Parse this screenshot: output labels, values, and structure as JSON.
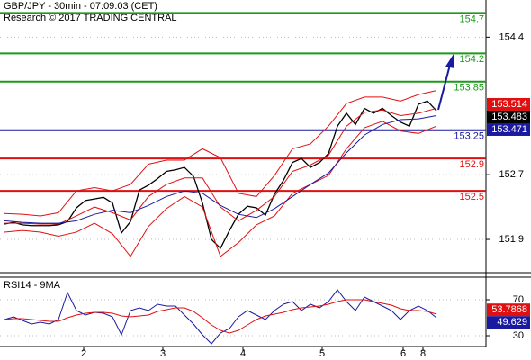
{
  "chart_data": [
    {
      "type": "line",
      "title": "GBP/JPY - 30min - 07:09:03 (CET)",
      "subtitle": "Research © 2017 TRADING CENTRAL",
      "xlim": [
        0,
        540
      ],
      "ylim": [
        151.5,
        154.86
      ],
      "yticks": [
        154.4,
        152.7,
        151.9
      ],
      "grid": true,
      "levels": [
        {
          "value": 154.7,
          "color": "#1a9a1a"
        },
        {
          "value": 154.2,
          "color": "#1a9a1a"
        },
        {
          "value": 153.85,
          "color": "#1a9a1a"
        },
        {
          "value": 153.25,
          "color": "#1a1aa0"
        },
        {
          "value": 152.9,
          "color": "#e01010"
        },
        {
          "value": 152.5,
          "color": "#e01010"
        }
      ],
      "series": [
        {
          "color": "#000000",
          "x": [
            5,
            15,
            25,
            35,
            45,
            55,
            65,
            75,
            85,
            95,
            105,
            115,
            125,
            135,
            145,
            155,
            165,
            175,
            185,
            195,
            205,
            215,
            225,
            235,
            245,
            255,
            265,
            275,
            285,
            295,
            305,
            315,
            325,
            335,
            345,
            355,
            365,
            375,
            385,
            395,
            405,
            415,
            425,
            435,
            445,
            455,
            465,
            475,
            485
          ],
          "values": [
            152.09,
            152.11,
            152.08,
            152.07,
            152.07,
            152.07,
            152.08,
            152.12,
            152.29,
            152.38,
            152.4,
            152.42,
            152.35,
            151.98,
            152.12,
            152.51,
            152.57,
            152.65,
            152.74,
            152.76,
            152.79,
            152.68,
            152.35,
            151.9,
            151.79,
            152.01,
            152.21,
            152.31,
            152.29,
            152.2,
            152.46,
            152.63,
            152.85,
            152.9,
            152.79,
            152.85,
            152.96,
            153.3,
            153.46,
            153.32,
            153.52,
            153.46,
            153.52,
            153.43,
            153.35,
            153.3,
            153.57,
            153.61,
            153.49
          ]
        },
        {
          "color": "#e01010",
          "x": [
            5,
            25,
            45,
            65,
            85,
            105,
            125,
            145,
            165,
            185,
            205,
            225,
            245,
            265,
            285,
            305,
            325,
            345,
            365,
            385,
            405,
            425,
            445,
            465,
            485
          ],
          "values": [
            152.22,
            152.21,
            152.19,
            152.23,
            152.5,
            152.54,
            152.5,
            152.58,
            152.83,
            152.88,
            152.88,
            153.02,
            152.91,
            152.47,
            152.43,
            152.69,
            153.02,
            153.08,
            153.3,
            153.58,
            153.66,
            153.66,
            153.61,
            153.69,
            153.74
          ]
        },
        {
          "color": "#e01010",
          "x": [
            5,
            25,
            45,
            65,
            85,
            105,
            125,
            145,
            165,
            185,
            205,
            225,
            245,
            265,
            285,
            305,
            325,
            345,
            365,
            385,
            405,
            425,
            445,
            465,
            485
          ],
          "values": [
            151.99,
            152.01,
            151.99,
            151.94,
            151.99,
            152.1,
            151.97,
            151.69,
            152.06,
            152.28,
            152.43,
            152.3,
            151.69,
            151.86,
            152.08,
            152.19,
            152.47,
            152.58,
            152.69,
            153.02,
            153.28,
            153.36,
            153.24,
            153.21,
            153.3
          ]
        },
        {
          "color": "#e01010",
          "x": [
            5,
            25,
            45,
            65,
            85,
            105,
            125,
            145,
            165,
            185,
            205,
            225,
            245,
            265,
            285,
            305,
            325,
            345,
            365,
            385,
            405,
            425,
            445,
            465,
            485
          ],
          "values": [
            152.1,
            152.1,
            152.09,
            152.09,
            152.19,
            152.3,
            152.23,
            152.14,
            152.43,
            152.58,
            152.66,
            152.66,
            152.3,
            152.13,
            152.26,
            152.43,
            152.74,
            152.82,
            152.94,
            153.3,
            153.47,
            153.5,
            153.43,
            153.46,
            153.52
          ]
        },
        {
          "color": "#1a1aa0",
          "x": [
            5,
            25,
            45,
            65,
            85,
            105,
            125,
            145,
            165,
            185,
            205,
            225,
            245,
            265,
            285,
            305,
            325,
            345,
            365,
            385,
            405,
            425,
            445,
            465,
            485
          ],
          "values": [
            152.13,
            152.11,
            152.1,
            152.1,
            152.13,
            152.21,
            152.26,
            152.23,
            152.32,
            152.43,
            152.5,
            152.47,
            152.32,
            152.21,
            152.17,
            152.28,
            152.43,
            152.58,
            152.72,
            152.97,
            153.19,
            153.32,
            153.38,
            153.39,
            153.43
          ]
        }
      ],
      "price_labels": [
        {
          "value": 153.514,
          "color": "#e01010"
        },
        {
          "value": 153.483,
          "color": "#000000"
        },
        {
          "value": 153.471,
          "color": "#1a1aa0"
        }
      ]
    },
    {
      "type": "line",
      "title": "RSI14 - 9MA",
      "xlim": [
        0,
        540
      ],
      "ylim": [
        18,
        95
      ],
      "yticks": [
        70,
        30
      ],
      "grid": true,
      "xticks": [
        {
          "value": 93,
          "label": "2"
        },
        {
          "value": 181,
          "label": "3"
        },
        {
          "value": 270,
          "label": "4"
        },
        {
          "value": 358,
          "label": "5"
        },
        {
          "value": 448,
          "label": "6"
        },
        {
          "value": 470,
          "label": "8"
        }
      ],
      "series": [
        {
          "color": "#1a1aa0",
          "x": [
            5,
            15,
            25,
            35,
            45,
            55,
            65,
            75,
            85,
            95,
            105,
            115,
            125,
            135,
            145,
            155,
            165,
            175,
            185,
            195,
            205,
            215,
            225,
            235,
            245,
            255,
            265,
            275,
            285,
            295,
            305,
            315,
            325,
            335,
            345,
            355,
            365,
            375,
            385,
            395,
            405,
            415,
            425,
            435,
            445,
            455,
            465,
            475,
            485
          ],
          "values": [
            48,
            51,
            47,
            43,
            45,
            43,
            48,
            78,
            58,
            53,
            56,
            55,
            51,
            31,
            58,
            61,
            58,
            65,
            63,
            63,
            53,
            43,
            31,
            21,
            33,
            38,
            51,
            58,
            53,
            48,
            58,
            65,
            68,
            58,
            65,
            61,
            68,
            81,
            68,
            58,
            73,
            68,
            63,
            58,
            48,
            58,
            63,
            58,
            50
          ]
        },
        {
          "color": "#e01010",
          "x": [
            5,
            15,
            25,
            35,
            45,
            55,
            65,
            75,
            85,
            95,
            105,
            115,
            125,
            135,
            145,
            155,
            165,
            175,
            185,
            195,
            205,
            215,
            225,
            235,
            245,
            255,
            265,
            275,
            285,
            295,
            305,
            315,
            325,
            335,
            345,
            355,
            365,
            375,
            385,
            395,
            405,
            415,
            425,
            435,
            445,
            455,
            465,
            475,
            485
          ],
          "values": [
            48,
            49,
            49,
            48,
            47,
            46,
            46,
            50,
            53,
            55,
            56,
            56,
            55,
            52,
            51,
            52,
            53,
            57,
            59,
            61,
            61,
            57,
            50,
            42,
            36,
            33,
            36,
            42,
            48,
            52,
            54,
            56,
            59,
            61,
            62,
            63,
            65,
            68,
            70,
            70,
            70,
            68,
            66,
            64,
            60,
            58,
            58,
            57,
            54
          ]
        }
      ],
      "price_labels": [
        {
          "value": 53.7868,
          "color": "#e01010"
        },
        {
          "value": 49.629,
          "color": "#1a1aa0"
        }
      ]
    }
  ]
}
